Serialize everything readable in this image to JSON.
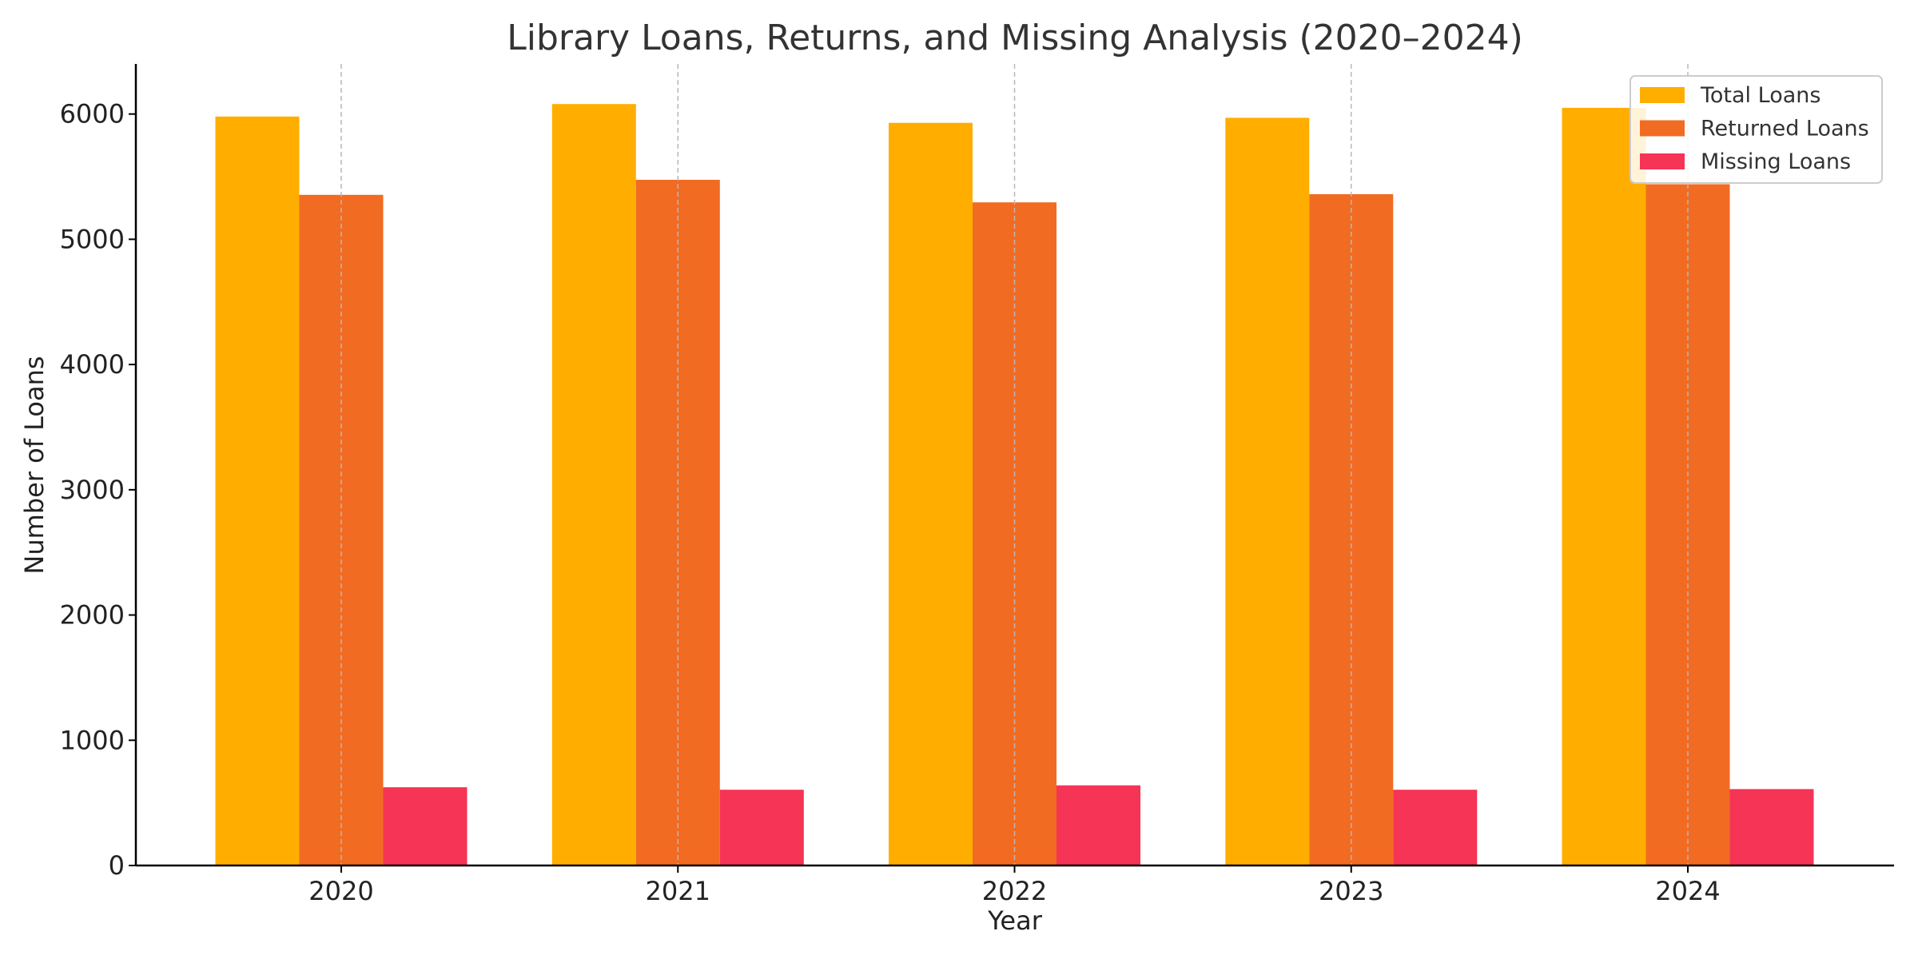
{
  "chart_data": {
    "type": "bar",
    "title": "Library Loans, Returns, and Missing Analysis (2020–2024)",
    "xlabel": "Year",
    "ylabel": "Number of Loans",
    "categories": [
      "2020",
      "2021",
      "2022",
      "2023",
      "2024"
    ],
    "ylim": [
      0,
      6400
    ],
    "yticks": [
      0,
      1000,
      2000,
      3000,
      4000,
      5000,
      6000
    ],
    "grid": "vertical dashed at category centers",
    "legend_position": "top-right",
    "series": [
      {
        "name": "Total Loans",
        "color": "#FFAE00",
        "values": [
          5980,
          6080,
          5930,
          5970,
          6050
        ]
      },
      {
        "name": "Returned Loans",
        "color": "#F26B22",
        "values": [
          5355,
          5475,
          5295,
          5360,
          5440
        ]
      },
      {
        "name": "Missing Loans",
        "color": "#F53456",
        "values": [
          625,
          605,
          640,
          605,
          610
        ]
      }
    ]
  }
}
